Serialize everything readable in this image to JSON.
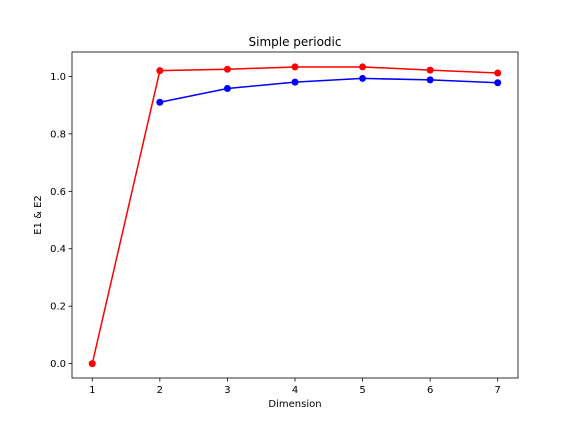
{
  "chart_data": {
    "type": "line",
    "title": "Simple periodic",
    "xlabel": "Dimension",
    "ylabel": "E1 & E2",
    "xlim": [
      0.7,
      7.3
    ],
    "ylim": [
      -0.05,
      1.085
    ],
    "xticks": [
      1,
      2,
      3,
      4,
      5,
      6,
      7
    ],
    "xtick_labels": [
      "1",
      "2",
      "3",
      "4",
      "5",
      "6",
      "7"
    ],
    "yticks": [
      0.0,
      0.2,
      0.4,
      0.6,
      0.8,
      1.0
    ],
    "ytick_labels": [
      "0.0",
      "0.2",
      "0.4",
      "0.6",
      "0.8",
      "1.0"
    ],
    "grid": false,
    "legend": "none",
    "series": [
      {
        "color": "#ff0000",
        "marker": "circle",
        "x": [
          1,
          2,
          3,
          4,
          5,
          6,
          7
        ],
        "y": [
          0.0,
          1.02,
          1.025,
          1.033,
          1.033,
          1.022,
          1.012
        ]
      },
      {
        "color": "#0000ff",
        "marker": "circle",
        "x": [
          2,
          3,
          4,
          5,
          6,
          7
        ],
        "y": [
          0.91,
          0.958,
          0.98,
          0.993,
          0.988,
          0.978
        ]
      }
    ]
  }
}
